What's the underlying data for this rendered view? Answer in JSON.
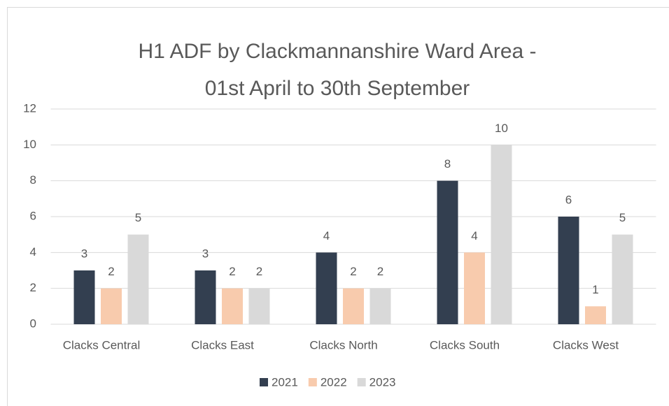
{
  "chart_data": {
    "type": "bar",
    "title": [
      "H1 ADF by Clackmannanshire Ward Area -",
      "01st April to 30th September"
    ],
    "categories": [
      "Clacks Central",
      "Clacks East",
      "Clacks North",
      "Clacks South",
      "Clacks West"
    ],
    "series": [
      {
        "name": "2021",
        "color": "#333f50",
        "values": [
          3,
          3,
          4,
          8,
          6
        ]
      },
      {
        "name": "2022",
        "color": "#f8cbad",
        "values": [
          2,
          2,
          2,
          4,
          1
        ]
      },
      {
        "name": "2023",
        "color": "#d9d9d9",
        "values": [
          5,
          2,
          2,
          10,
          5
        ]
      }
    ],
    "ylim": [
      0,
      12
    ],
    "yticks": [
      0,
      2,
      4,
      6,
      8,
      10,
      12
    ],
    "grid": true,
    "legend": "bottom"
  }
}
